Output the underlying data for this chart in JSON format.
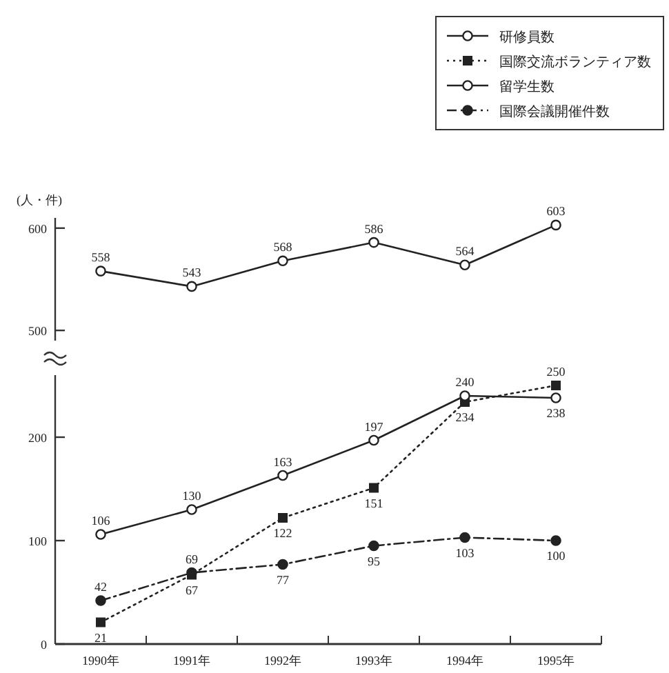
{
  "chart_data": [
    {
      "type": "line",
      "ylabel": "(人・件)",
      "categories": [
        null,
        null,
        null,
        null,
        null,
        null
      ],
      "ylim": [
        490,
        610
      ],
      "yticks": [
        500,
        600
      ],
      "tick_labels": "y",
      "grid": false,
      "legend": "top right",
      "data_labels": true,
      "series": [
        {
          "name": "研修員数",
          "color": "#222222",
          "marker": "circle",
          "line_style": "solid",
          "values": [
            558,
            543,
            568,
            586,
            564,
            603
          ]
        }
      ]
    },
    {
      "type": "line",
      "categories": [
        "1990年",
        "1991年",
        "1992年",
        "1993年",
        "1994年",
        "1995年"
      ],
      "ylim": [
        0,
        260
      ],
      "yticks": [
        0,
        100,
        200
      ],
      "grid": false,
      "legend": "top right",
      "data_labels": true,
      "series": [
        {
          "name": "国際交流ボランティア数",
          "color": "#222222",
          "marker": "square",
          "line_style": "dotted",
          "values": [
            21,
            67,
            122,
            151,
            234,
            250
          ]
        },
        {
          "name": "留学生数",
          "color": "#222222",
          "marker": "circle",
          "line_style": "solid",
          "values": [
            106,
            130,
            163,
            197,
            240,
            238
          ]
        },
        {
          "name": "国際会議開催件数",
          "color": "#222222",
          "marker": "circle",
          "line_style": "dashed",
          "values": [
            42,
            69,
            77,
            95,
            103,
            100
          ]
        }
      ]
    }
  ]
}
